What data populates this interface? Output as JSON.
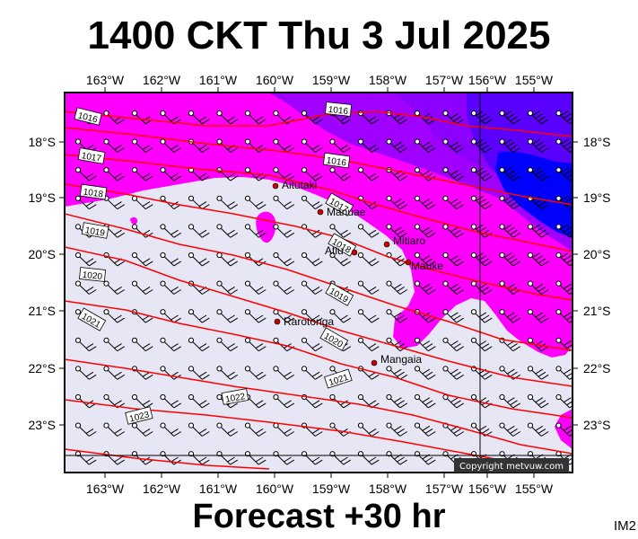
{
  "header": {
    "title": "1400 CKT Thu 3 Jul 2025"
  },
  "footer": {
    "forecast": "Forecast +30 hr",
    "image_id": "IM2"
  },
  "copyright": "Copyright metvuw.com",
  "map": {
    "lon_ticks": [
      "163°W",
      "162°W",
      "161°W",
      "160°W",
      "159°W",
      "158°W",
      "157°W",
      "156°W",
      "155°W"
    ],
    "lat_ticks": [
      "18°S",
      "19°S",
      "20°S",
      "21°S",
      "22°S",
      "23°S"
    ],
    "places": [
      {
        "name": "Aitutaki"
      },
      {
        "name": "Manuae"
      },
      {
        "name": "Mitiaro"
      },
      {
        "name": "Atiu"
      },
      {
        "name": "Mauke"
      },
      {
        "name": "Rarotonga"
      },
      {
        "name": "Mangaia"
      }
    ],
    "isobar_labels": [
      "1016",
      "1016",
      "1017",
      "1016",
      "1018",
      "1017",
      "1019",
      "1018",
      "1020",
      "1019",
      "1021",
      "1020",
      "1021",
      "1022",
      "1023"
    ],
    "colors": {
      "light_wind": "#e6e6f5",
      "moderate_wind": "#ff00ff",
      "strong_wind": "#9900ff",
      "very_strong_wind": "#0000ff",
      "isobar": "#ff0000",
      "place_marker": "#cc0000"
    }
  }
}
